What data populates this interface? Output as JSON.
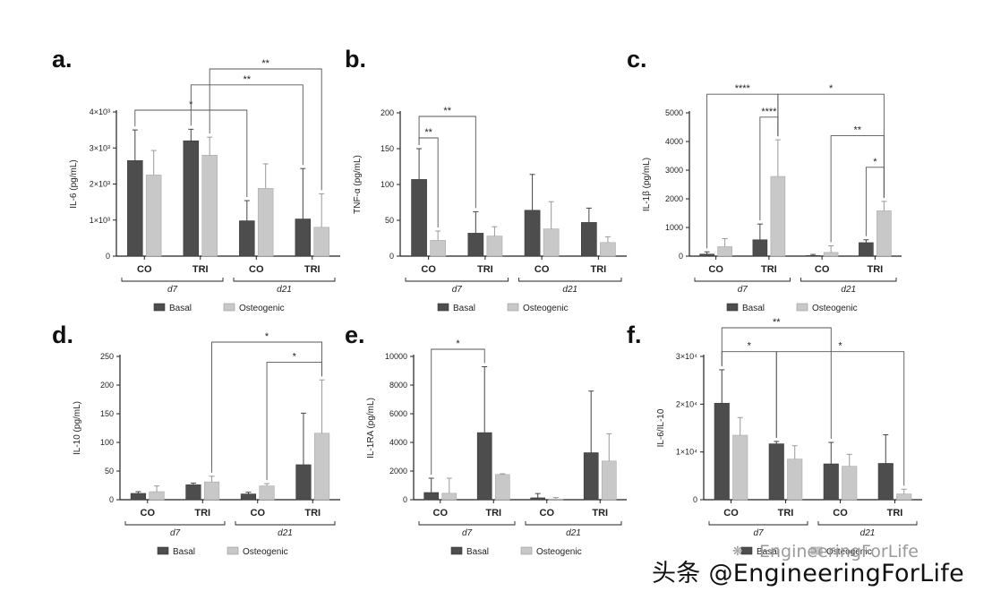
{
  "colors": {
    "basal": "#4d4d4d",
    "osteogenic": "#c8c8c8",
    "axis": "#222222",
    "text": "#222222"
  },
  "watermark": "头条 @EngineeringForLife",
  "watermark_faint": "EngineeringForLife",
  "chart_data": [
    {
      "id": "a",
      "panel_label": "a.",
      "type": "bar",
      "ylabel": "IL-6 (pg/mL)",
      "yticks": [
        "0",
        "1×10³",
        "2×10³",
        "3×10³",
        "4×10³"
      ],
      "ylim": [
        0,
        4000
      ],
      "categories": [
        "CO",
        "TRI",
        "CO",
        "TRI"
      ],
      "groups": [
        "d7",
        "d21"
      ],
      "series": [
        {
          "name": "Basal",
          "values": [
            2650,
            3200,
            980,
            1030
          ],
          "errors": [
            850,
            320,
            560,
            1400
          ]
        },
        {
          "name": "Osteogenic",
          "values": [
            2250,
            2800,
            1880,
            800
          ],
          "errors": [
            680,
            500,
            680,
            930
          ]
        }
      ],
      "significance": [
        {
          "from": [
            0,
            0
          ],
          "to": [
            2,
            0
          ],
          "h": 4050,
          "label": "*"
        },
        {
          "from": [
            1,
            0
          ],
          "to": [
            3,
            0
          ],
          "h": 4750,
          "label": "**"
        },
        {
          "from": [
            1,
            1
          ],
          "to": [
            3,
            1
          ],
          "h": 5550,
          "label": "**"
        }
      ],
      "legend": [
        "Basal",
        "Osteogenic"
      ]
    },
    {
      "id": "b",
      "panel_label": "b.",
      "type": "bar",
      "ylabel": "TNF-α (pg/mL)",
      "yticks": [
        "0",
        "50",
        "100",
        "150",
        "200"
      ],
      "ylim": [
        0,
        200
      ],
      "categories": [
        "CO",
        "TRI",
        "CO",
        "TRI"
      ],
      "groups": [
        "d7",
        "d21"
      ],
      "series": [
        {
          "name": "Basal",
          "values": [
            107,
            32,
            64,
            47
          ],
          "errors": [
            43,
            30,
            50,
            20
          ]
        },
        {
          "name": "Osteogenic",
          "values": [
            22,
            28,
            38,
            19
          ],
          "errors": [
            13,
            13,
            38,
            8
          ]
        }
      ],
      "significance": [
        {
          "from": [
            0,
            0
          ],
          "to": [
            0,
            1
          ],
          "h": 165,
          "label": "**"
        },
        {
          "from": [
            0,
            0
          ],
          "to": [
            1,
            0
          ],
          "h": 195,
          "label": "**"
        }
      ],
      "legend": [
        "Basal",
        "Osteogenic"
      ]
    },
    {
      "id": "c",
      "panel_label": "c.",
      "type": "bar",
      "ylabel": "IL-1β (pg/mL)",
      "yticks": [
        "0",
        "1000",
        "2000",
        "3000",
        "4000",
        "5000"
      ],
      "ylim": [
        0,
        5000
      ],
      "categories": [
        "CO",
        "TRI",
        "CO",
        "TRI"
      ],
      "groups": [
        "d7",
        "d21"
      ],
      "series": [
        {
          "name": "Basal",
          "values": [
            70,
            570,
            20,
            470
          ],
          "errors": [
            80,
            550,
            40,
            100
          ]
        },
        {
          "name": "Osteogenic",
          "values": [
            330,
            2780,
            130,
            1580
          ],
          "errors": [
            280,
            1280,
            230,
            330
          ]
        }
      ],
      "significance": [
        {
          "from": [
            0,
            0
          ],
          "to": [
            1,
            1
          ],
          "h": 5650,
          "label": "****"
        },
        {
          "from": [
            1,
            0
          ],
          "to": [
            1,
            1
          ],
          "h": 4850,
          "label": "****"
        },
        {
          "from": [
            1,
            1
          ],
          "to": [
            3,
            1
          ],
          "h": 5650,
          "label": "*"
        },
        {
          "from": [
            2,
            1
          ],
          "to": [
            3,
            1
          ],
          "h": 4200,
          "label": "**"
        },
        {
          "from": [
            3,
            0
          ],
          "to": [
            3,
            1
          ],
          "h": 3100,
          "label": "*"
        }
      ],
      "legend": [
        "Basal",
        "Osteogenic"
      ]
    },
    {
      "id": "d",
      "panel_label": "d.",
      "type": "bar",
      "ylabel": "IL-10 (pg/mL)",
      "yticks": [
        "0",
        "50",
        "100",
        "150",
        "200",
        "250"
      ],
      "ylim": [
        0,
        250
      ],
      "categories": [
        "CO",
        "TRI",
        "CO",
        "TRI"
      ],
      "groups": [
        "d7",
        "d21"
      ],
      "series": [
        {
          "name": "Basal",
          "values": [
            11,
            26,
            10,
            61
          ],
          "errors": [
            3,
            3,
            3,
            90
          ]
        },
        {
          "name": "Osteogenic",
          "values": [
            14,
            31,
            24,
            116
          ],
          "errors": [
            10,
            10,
            4,
            93
          ]
        }
      ],
      "significance": [
        {
          "from": [
            1,
            1
          ],
          "to": [
            3,
            1
          ],
          "h": 275,
          "label": "*"
        },
        {
          "from": [
            2,
            1
          ],
          "to": [
            3,
            1
          ],
          "h": 240,
          "label": "*"
        }
      ],
      "legend": [
        "Basal",
        "Osteogenic"
      ]
    },
    {
      "id": "e",
      "panel_label": "e.",
      "type": "bar",
      "ylabel": "IL-1RA (pg/mL)",
      "yticks": [
        "0",
        "2000",
        "4000",
        "6000",
        "8000",
        "10000"
      ],
      "ylim": [
        0,
        10000
      ],
      "categories": [
        "CO",
        "TRI",
        "CO",
        "TRI"
      ],
      "groups": [
        "d7",
        "d21"
      ],
      "series": [
        {
          "name": "Basal",
          "values": [
            500,
            4680,
            130,
            3280
          ],
          "errors": [
            1000,
            4600,
            300,
            4300
          ]
        },
        {
          "name": "Osteogenic",
          "values": [
            450,
            1760,
            50,
            2700
          ],
          "errors": [
            1050,
            50,
            100,
            1900
          ]
        }
      ],
      "significance": [
        {
          "from": [
            0,
            0
          ],
          "to": [
            1,
            0
          ],
          "h": 10500,
          "label": "*"
        }
      ],
      "legend": [
        "Basal",
        "Osteogenic"
      ]
    },
    {
      "id": "f",
      "panel_label": "f.",
      "type": "bar",
      "ylabel": "IL-6/IL-10",
      "yticks": [
        "0",
        "1×10⁴",
        "2×10⁴",
        "3×10⁴"
      ],
      "ylim": [
        0,
        30000
      ],
      "categories": [
        "CO",
        "TRI",
        "CO",
        "TRI"
      ],
      "groups": [
        "d7",
        "d21"
      ],
      "series": [
        {
          "name": "Basal",
          "values": [
            20200,
            11700,
            7500,
            7600
          ],
          "errors": [
            7000,
            500,
            4500,
            6000
          ]
        },
        {
          "name": "Osteogenic",
          "values": [
            13500,
            8500,
            7000,
            1200
          ],
          "errors": [
            3700,
            2800,
            2500,
            1000
          ]
        }
      ],
      "significance": [
        {
          "from": [
            0,
            0
          ],
          "to": [
            2,
            0
          ],
          "h": 36000,
          "label": "**"
        },
        {
          "from": [
            0,
            0
          ],
          "to": [
            1,
            0
          ],
          "h": 31000,
          "label": "*"
        },
        {
          "from": [
            1,
            0
          ],
          "to": [
            3,
            1
          ],
          "h": 31000,
          "label": "*"
        }
      ],
      "legend": [
        "Basal",
        "Osteogenic"
      ]
    }
  ]
}
